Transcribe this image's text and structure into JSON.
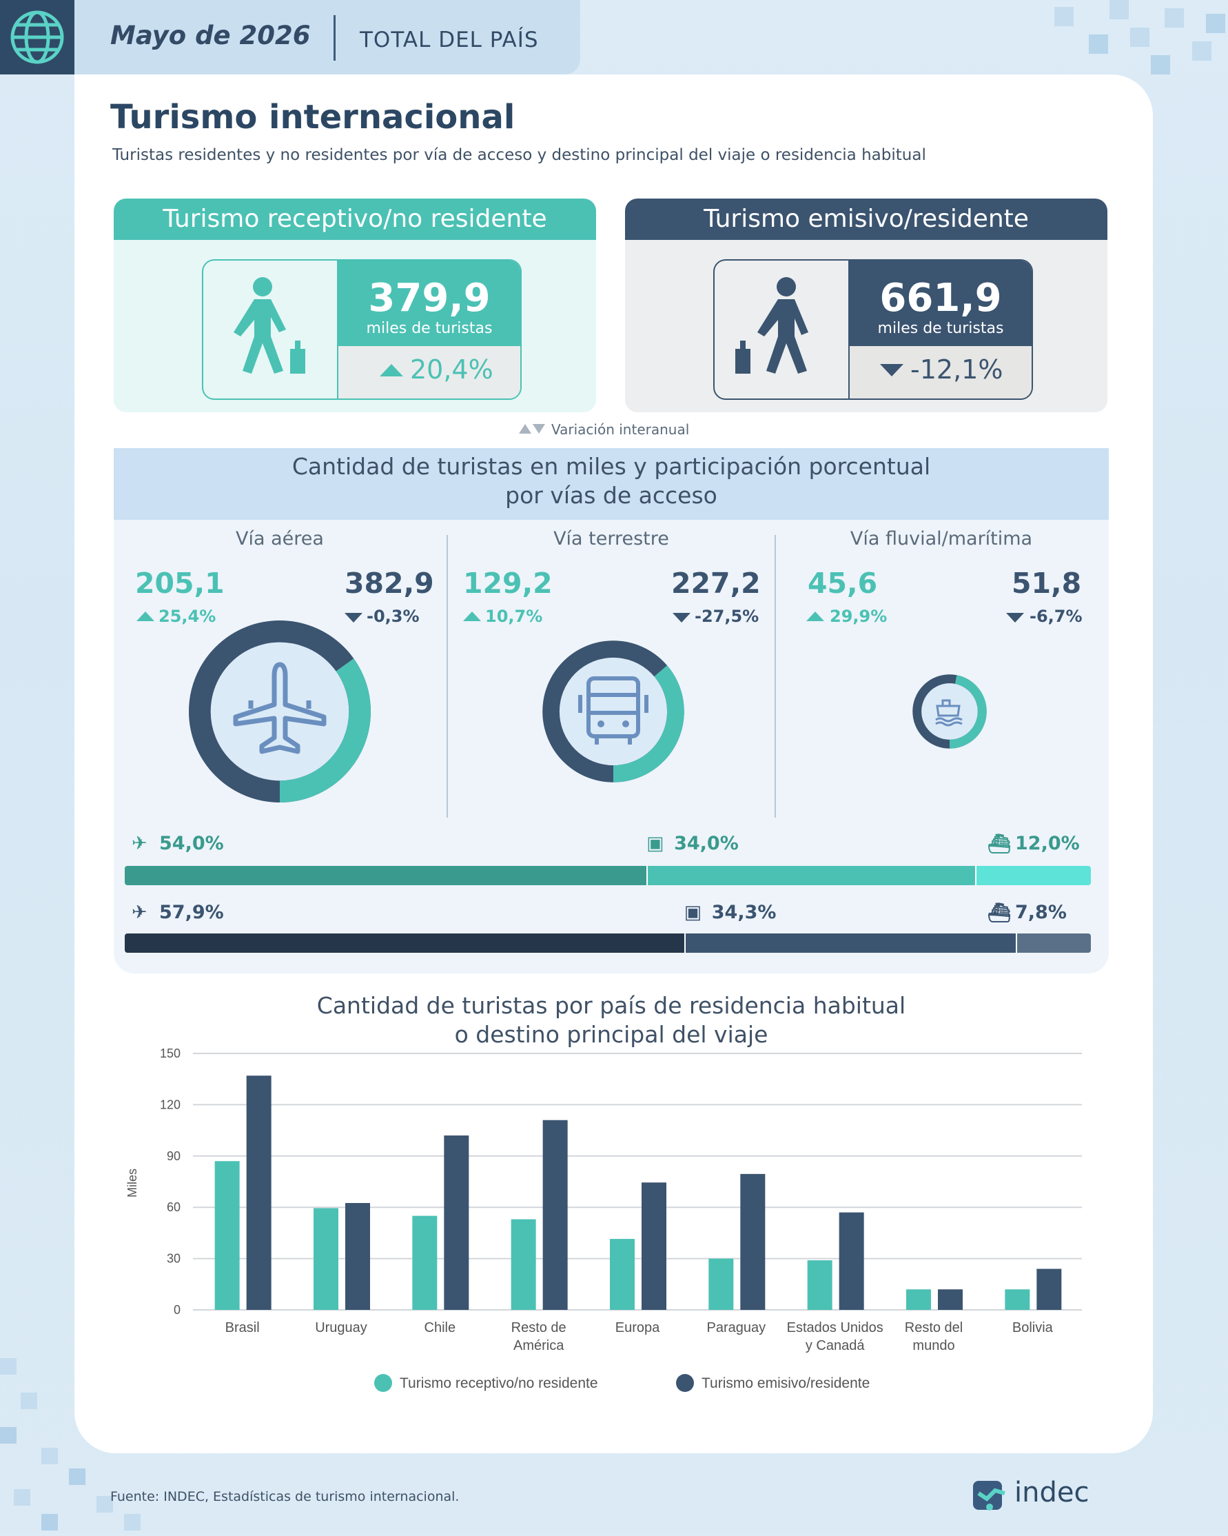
{
  "header": {
    "date": "Mayo de 2026",
    "scope": "TOTAL DEL PAÍS"
  },
  "title": "Turismo internacional",
  "subtitle": "Turistas residentes y no residentes por vía de acceso y destino principal del viaje o residencia habitual",
  "kpis": {
    "receptivo": {
      "title": "Turismo receptivo/no residente",
      "value": "379,9",
      "unit": "miles de turistas",
      "variation": "20,4%",
      "direction": "up"
    },
    "emisivo": {
      "title": "Turismo emisivo/residente",
      "value": "661,9",
      "unit": "miles de turistas",
      "variation": "-12,1%",
      "direction": "down"
    },
    "legend": "Variación interanual"
  },
  "access": {
    "title_line1": "Cantidad de turistas en miles y participación porcentual",
    "title_line2": "por vías de acceso",
    "routes": [
      {
        "label": "Vía aérea",
        "receptivo": "205,1",
        "receptivo_var": "25,4%",
        "emisivo": "382,9",
        "emisivo_var": "-0,3%",
        "icon": "airplane-icon"
      },
      {
        "label": "Vía terrestre",
        "receptivo": "129,2",
        "receptivo_var": "10,7%",
        "emisivo": "227,2",
        "emisivo_var": "-27,5%",
        "icon": "bus-icon"
      },
      {
        "label": "Vía fluvial/marítima",
        "receptivo": "45,6",
        "receptivo_var": "29,9%",
        "emisivo": "51,8",
        "emisivo_var": "-6,7%",
        "icon": "ship-icon"
      }
    ],
    "share_receptivo": [
      {
        "icon": "airplane-icon",
        "label": "54,0%",
        "value": 54.0
      },
      {
        "icon": "bus-icon",
        "label": "34,0%",
        "value": 34.0
      },
      {
        "icon": "ship-icon",
        "label": "12,0%",
        "value": 12.0
      }
    ],
    "share_emisivo": [
      {
        "icon": "airplane-icon",
        "label": "57,9%",
        "value": 57.9
      },
      {
        "icon": "bus-icon",
        "label": "34,3%",
        "value": 34.3
      },
      {
        "icon": "ship-icon",
        "label": "7,8%",
        "value": 7.8
      }
    ]
  },
  "colors": {
    "receptivo": "#4bc1b4",
    "emisivo": "#3b5470",
    "receptivo_dark": "#3a9a8e",
    "receptivo_light": "#5ee3d8",
    "emisivo_dark": "#26364a",
    "emisivo_light": "#5a7088"
  },
  "chart_data": {
    "type": "bar",
    "title_line1": "Cantidad de turistas por país de residencia habitual",
    "title_line2": "o destino principal del viaje",
    "ylabel": "Miles",
    "ylim": [
      0,
      150
    ],
    "yticks": [
      "0",
      "30",
      "60",
      "90",
      "120",
      "150"
    ],
    "categories": [
      [
        "Brasil"
      ],
      [
        "Uruguay"
      ],
      [
        "Chile"
      ],
      [
        "Resto de",
        "América"
      ],
      [
        "Europa"
      ],
      [
        "Paraguay"
      ],
      [
        "Estados Unidos",
        "y Canadá"
      ],
      [
        "Resto del",
        "mundo"
      ],
      [
        "Bolivia"
      ]
    ],
    "series": [
      {
        "name": "Turismo receptivo/no residente",
        "values": [
          87,
          59.5,
          55,
          53,
          41.5,
          30,
          29,
          12,
          12
        ]
      },
      {
        "name": "Turismo emisivo/residente",
        "values": [
          137,
          62.5,
          102,
          111,
          74.5,
          79.5,
          57,
          12,
          24
        ]
      }
    ]
  },
  "footer": {
    "source": "Fuente: INDEC, Estadísticas de turismo internacional.",
    "logo": "indec"
  }
}
